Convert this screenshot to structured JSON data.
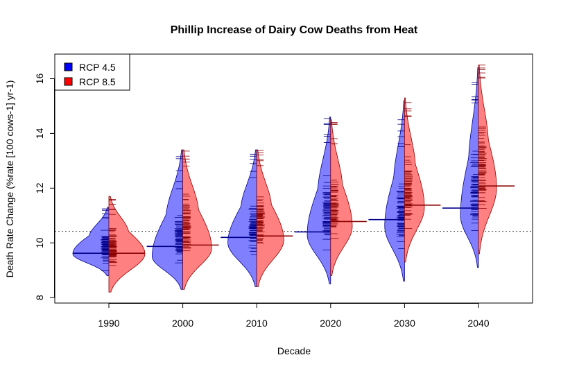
{
  "chart_data": {
    "type": "bean",
    "title": "Phillip Increase of Dairy Cow Deaths from Heat",
    "xlabel": "Decade",
    "ylabel": "Death Rate Change (%rate [100 cows-1] yr-1)",
    "categories": [
      "1990",
      "2000",
      "2010",
      "2020",
      "2030",
      "2040"
    ],
    "ylim": [
      7.8,
      16.9
    ],
    "yticks": [
      8,
      10,
      12,
      14,
      16
    ],
    "reference_line": 10.42,
    "legend_position": "top-left",
    "series": [
      {
        "name": "RCP 4.5",
        "color": "#0000ff",
        "fill": "#8080ff",
        "line": "#00008b",
        "means": [
          9.62,
          9.87,
          10.2,
          10.4,
          10.85,
          11.27
        ],
        "min": [
          8.8,
          9.0,
          9.35,
          9.5,
          9.2,
          9.7
        ],
        "max": [
          10.9,
          11.8,
          12.3,
          13.6,
          13.5,
          14.9
        ],
        "tail_min": [
          8.8,
          8.3,
          8.4,
          8.5,
          8.6,
          9.1
        ],
        "tail_max": [
          11.3,
          13.4,
          13.4,
          14.6,
          15.2,
          16.4
        ],
        "modes": [
          9.6,
          9.5,
          10.0,
          10.3,
          10.6,
          11.0
        ],
        "widths": [
          1.0,
          0.85,
          0.8,
          0.65,
          0.55,
          0.5
        ]
      },
      {
        "name": "RCP 8.5",
        "color": "#ff0000",
        "fill": "#ff8080",
        "line": "#8b0000",
        "means": [
          9.62,
          9.92,
          10.25,
          10.78,
          11.38,
          12.08
        ],
        "min": [
          8.8,
          9.0,
          9.4,
          9.7,
          9.9,
          10.4
        ],
        "max": [
          11.0,
          12.8,
          12.8,
          13.5,
          14.6,
          15.9
        ],
        "tail_min": [
          8.2,
          8.3,
          8.4,
          8.8,
          9.3,
          9.6
        ],
        "tail_max": [
          11.7,
          13.4,
          13.4,
          14.5,
          15.3,
          16.5
        ],
        "modes": [
          9.6,
          9.8,
          10.1,
          10.6,
          11.3,
          12.0
        ],
        "widths": [
          1.0,
          0.8,
          0.75,
          0.6,
          0.55,
          0.5
        ]
      }
    ]
  }
}
